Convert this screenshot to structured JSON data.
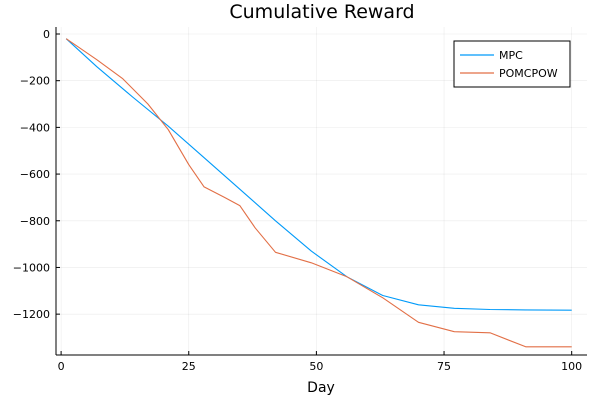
{
  "chart_data": {
    "type": "line",
    "title": "Cumulative Reward",
    "xlabel": "Day",
    "ylabel": "",
    "xlim": [
      -1,
      103
    ],
    "ylim": [
      -1375,
      30
    ],
    "xticks": [
      0,
      25,
      50,
      75,
      100
    ],
    "yticks": [
      0,
      -200,
      -400,
      -600,
      -800,
      -1000,
      -1200
    ],
    "xtick_labels": [
      "0",
      "25",
      "50",
      "75",
      "100"
    ],
    "ytick_labels": [
      "0",
      "−200",
      "−400",
      "−600",
      "−800",
      "−1000",
      "−1200"
    ],
    "grid": true,
    "legend_position": "top-right",
    "series": [
      {
        "name": "MPC",
        "color": "#009af9",
        "x": [
          1,
          7,
          14,
          21,
          28,
          35,
          42,
          49,
          56,
          63,
          70,
          77,
          84,
          91,
          100
        ],
        "y": [
          -20,
          -140,
          -270,
          -395,
          -530,
          -665,
          -800,
          -930,
          -1040,
          -1120,
          -1160,
          -1175,
          -1180,
          -1182,
          -1183
        ]
      },
      {
        "name": "POMCPOW",
        "color": "#e26f46",
        "x": [
          1,
          7,
          12,
          17,
          21,
          25,
          28,
          32,
          35,
          38,
          42,
          49,
          56,
          63,
          70,
          77,
          84,
          91,
          100
        ],
        "y": [
          -20,
          -110,
          -190,
          -300,
          -410,
          -560,
          -655,
          -700,
          -735,
          -830,
          -935,
          -980,
          -1040,
          -1130,
          -1235,
          -1275,
          -1280,
          -1340,
          -1340
        ]
      }
    ]
  }
}
